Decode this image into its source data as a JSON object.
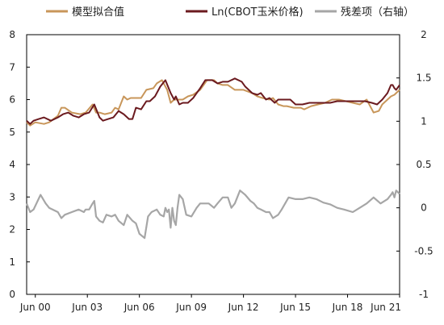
{
  "chart_data": {
    "type": "line",
    "xlabel": "",
    "ylabel": "",
    "x_range": [
      2000.0,
      2021.5
    ],
    "left_axis": {
      "ylim": [
        0,
        8
      ],
      "ticks": [
        0,
        1,
        2,
        3,
        4,
        5,
        6,
        7,
        8
      ]
    },
    "right_axis": {
      "ylim": [
        -1,
        2
      ],
      "ticks": [
        -1,
        -0.5,
        0,
        0.5,
        1,
        1.5,
        2
      ],
      "tick_labels": [
        "-1",
        "-0.5",
        "0",
        "0.5",
        "1",
        "1.5",
        "2"
      ]
    },
    "x_ticks": [
      {
        "x": 2000.5,
        "label": "Jun 00"
      },
      {
        "x": 2003.5,
        "label": "Jun 03"
      },
      {
        "x": 2006.5,
        "label": "Jun 06"
      },
      {
        "x": 2009.5,
        "label": "Jun 09"
      },
      {
        "x": 2012.5,
        "label": "Jun 12"
      },
      {
        "x": 2015.5,
        "label": "Jun 15"
      },
      {
        "x": 2018.5,
        "label": "Jun 18"
      },
      {
        "x": 2021.5,
        "label": "Jun 21"
      }
    ],
    "grid": false,
    "legend_position": "top",
    "series": [
      {
        "name": "模型拟合值",
        "axis": "left",
        "color": "#c8965a",
        "x": [
          2000.0,
          2000.2,
          2000.5,
          2001.0,
          2001.3,
          2001.8,
          2002.0,
          2002.2,
          2002.6,
          2003.1,
          2003.4,
          2003.8,
          2004.0,
          2004.2,
          2004.5,
          2004.9,
          2005.1,
          2005.3,
          2005.6,
          2005.8,
          2006.0,
          2006.3,
          2006.6,
          2006.9,
          2007.3,
          2007.5,
          2007.8,
          2008.1,
          2008.3,
          2008.5,
          2008.6,
          2008.8,
          2009.0,
          2009.3,
          2009.6,
          2010.0,
          2010.4,
          2010.8,
          2011.0,
          2011.3,
          2011.6,
          2012.0,
          2012.3,
          2012.5,
          2013.0,
          2013.3,
          2013.6,
          2014.0,
          2014.2,
          2014.5,
          2014.8,
          2015.0,
          2015.4,
          2015.8,
          2016.0,
          2016.4,
          2016.8,
          2017.2,
          2017.6,
          2018.0,
          2018.4,
          2018.8,
          2019.2,
          2019.6,
          2020.0,
          2020.3,
          2020.5,
          2020.8,
          2021.0,
          2021.2,
          2021.5
        ],
        "y": [
          5.3,
          5.2,
          5.3,
          5.25,
          5.3,
          5.5,
          5.75,
          5.75,
          5.6,
          5.55,
          5.6,
          5.85,
          5.6,
          5.6,
          5.55,
          5.6,
          5.75,
          5.7,
          6.1,
          6.0,
          6.05,
          6.05,
          6.05,
          6.3,
          6.35,
          6.5,
          6.6,
          6.3,
          5.9,
          6.0,
          6.0,
          6.0,
          6.0,
          6.1,
          6.15,
          6.3,
          6.6,
          6.6,
          6.5,
          6.45,
          6.45,
          6.3,
          6.3,
          6.3,
          6.2,
          6.1,
          6.05,
          6.0,
          6.05,
          5.85,
          5.8,
          5.8,
          5.75,
          5.75,
          5.7,
          5.8,
          5.85,
          5.9,
          6.0,
          6.0,
          5.95,
          5.9,
          5.85,
          6.0,
          5.6,
          5.65,
          5.85,
          6.0,
          6.1,
          6.15,
          6.3
        ]
      },
      {
        "name": "Ln(CBOT玉米价格)",
        "axis": "left",
        "color": "#6b1a1f",
        "x": [
          2000.0,
          2000.2,
          2000.4,
          2000.7,
          2001.0,
          2001.4,
          2001.8,
          2002.1,
          2002.4,
          2002.7,
          2003.0,
          2003.3,
          2003.6,
          2003.9,
          2004.2,
          2004.4,
          2004.7,
          2005.0,
          2005.3,
          2005.6,
          2005.9,
          2006.1,
          2006.3,
          2006.6,
          2006.9,
          2007.1,
          2007.4,
          2007.7,
          2008.0,
          2008.3,
          2008.5,
          2008.6,
          2008.8,
          2009.0,
          2009.3,
          2009.6,
          2010.0,
          2010.3,
          2010.7,
          2011.0,
          2011.3,
          2011.6,
          2012.0,
          2012.4,
          2012.6,
          2013.0,
          2013.3,
          2013.5,
          2013.8,
          2014.0,
          2014.3,
          2014.5,
          2014.8,
          2015.2,
          2015.5,
          2015.9,
          2016.3,
          2016.7,
          2017.1,
          2017.5,
          2017.9,
          2018.3,
          2018.7,
          2019.1,
          2019.5,
          2019.9,
          2020.2,
          2020.5,
          2020.8,
          2021.0,
          2021.1,
          2021.2,
          2021.3,
          2021.5
        ],
        "y": [
          5.35,
          5.25,
          5.35,
          5.4,
          5.45,
          5.35,
          5.45,
          5.55,
          5.6,
          5.5,
          5.45,
          5.55,
          5.6,
          5.85,
          5.45,
          5.35,
          5.4,
          5.45,
          5.65,
          5.55,
          5.4,
          5.4,
          5.75,
          5.7,
          5.95,
          5.95,
          6.1,
          6.4,
          6.6,
          6.2,
          6.0,
          6.1,
          5.85,
          5.9,
          5.9,
          6.05,
          6.35,
          6.6,
          6.6,
          6.5,
          6.55,
          6.55,
          6.65,
          6.55,
          6.4,
          6.2,
          6.15,
          6.2,
          6.0,
          6.05,
          5.9,
          6.0,
          6.0,
          6.0,
          5.85,
          5.85,
          5.9,
          5.9,
          5.9,
          5.9,
          5.95,
          5.95,
          5.95,
          5.95,
          5.95,
          5.9,
          5.85,
          6.0,
          6.2,
          6.45,
          6.45,
          6.35,
          6.3,
          6.45
        ]
      },
      {
        "name": "残差项（右轴）",
        "axis": "right",
        "color": "#a6a6a6",
        "x": [
          2000.0,
          2000.2,
          2000.4,
          2000.8,
          2001.1,
          2001.3,
          2001.8,
          2002.0,
          2002.2,
          2002.6,
          2003.0,
          2003.3,
          2003.4,
          2003.6,
          2003.8,
          2003.9,
          2004.0,
          2004.2,
          2004.4,
          2004.6,
          2004.9,
          2005.1,
          2005.3,
          2005.6,
          2005.8,
          2006.1,
          2006.3,
          2006.5,
          2006.8,
          2007.0,
          2007.2,
          2007.5,
          2007.7,
          2007.9,
          2008.0,
          2008.1,
          2008.2,
          2008.3,
          2008.4,
          2008.5,
          2008.6,
          2008.7,
          2008.8,
          2009.0,
          2009.2,
          2009.5,
          2009.8,
          2010.0,
          2010.2,
          2010.5,
          2010.8,
          2011.0,
          2011.3,
          2011.6,
          2011.8,
          2012.0,
          2012.3,
          2012.6,
          2012.9,
          2013.1,
          2013.3,
          2013.5,
          2013.8,
          2014.0,
          2014.2,
          2014.5,
          2014.7,
          2014.9,
          2015.1,
          2015.5,
          2015.9,
          2016.3,
          2016.7,
          2017.1,
          2017.5,
          2017.9,
          2018.3,
          2018.8,
          2019.2,
          2019.6,
          2020.0,
          2020.4,
          2020.8,
          2021.0,
          2021.1,
          2021.2,
          2021.3,
          2021.5
        ],
        "y": [
          0.05,
          -0.05,
          -0.02,
          0.15,
          0.05,
          0.0,
          -0.05,
          -0.12,
          -0.08,
          -0.05,
          -0.02,
          -0.05,
          -0.02,
          -0.02,
          0.05,
          0.08,
          -0.1,
          -0.15,
          -0.17,
          -0.08,
          -0.1,
          -0.08,
          -0.15,
          -0.2,
          -0.08,
          -0.15,
          -0.18,
          -0.3,
          -0.35,
          -0.1,
          -0.05,
          -0.02,
          -0.08,
          -0.1,
          0.0,
          -0.05,
          -0.02,
          -0.23,
          0.0,
          -0.15,
          -0.2,
          0.0,
          0.15,
          0.1,
          -0.08,
          -0.1,
          0.0,
          0.05,
          0.05,
          0.05,
          0.0,
          0.05,
          0.12,
          0.12,
          0.0,
          0.05,
          0.2,
          0.15,
          0.08,
          0.05,
          0.0,
          -0.02,
          -0.05,
          -0.05,
          -0.12,
          -0.08,
          -0.02,
          0.05,
          0.12,
          0.1,
          0.1,
          0.12,
          0.1,
          0.06,
          0.04,
          0.0,
          -0.02,
          -0.05,
          0.0,
          0.05,
          0.12,
          0.05,
          0.1,
          0.15,
          0.18,
          0.12,
          0.2,
          0.16
        ]
      }
    ]
  }
}
